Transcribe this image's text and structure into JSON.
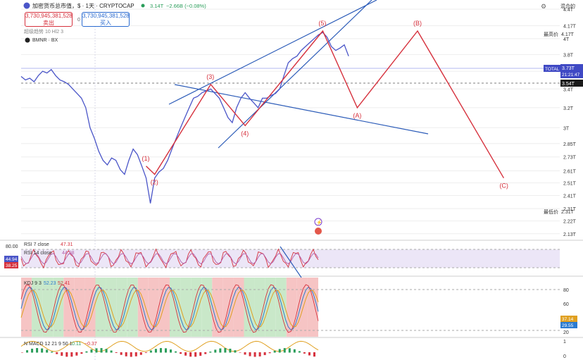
{
  "header": {
    "title": "加密货币总市值，$ · 1天 · CRYPTOCAP",
    "price": "3.14T",
    "change": "−2.66B (−0.08%)",
    "sell_value": "3,730,945,381,528",
    "sell_label": "卖出",
    "buy_value": "3,730,945,381,528",
    "buy_label": "买入",
    "spread": "0",
    "watermark": "超级趋势 10 Hl2 3",
    "compare": "BMNR · BX",
    "currency_menu": "混合的"
  },
  "price_axis": {
    "ticks": [
      "4.4T",
      "4.17T",
      "4T",
      "3.8T",
      "3.6T",
      "3.4T",
      "3.2T",
      "3T",
      "2.85T",
      "2.73T",
      "2.61T",
      "2.51T",
      "2.41T",
      "2.31T",
      "2.22T",
      "2.13T"
    ],
    "high_label": "最高价",
    "low_label": "最低价",
    "total_tag": "TOTAL",
    "total_value": "3.73T",
    "countdown": "21:21:47",
    "level_value": "3.54T"
  },
  "wave_labels": [
    "(1)",
    "(2)",
    "(3)",
    "(4)",
    "(5)",
    "(A)",
    "(B)",
    "(C)"
  ],
  "rsi": {
    "rsi7_label": "RSI 7 close",
    "rsi7_value": "47.31",
    "rsi14_label": "RSI 14 close",
    "rsi14_value": "44.98",
    "axis_top": "80.00",
    "tag1": "44.94",
    "tag2": "38.25"
  },
  "kdj": {
    "label": "KDJ 9 3",
    "v1": "52.23",
    "v2": "52.41",
    "axis": [
      "80",
      "60",
      "40",
      "20"
    ],
    "tag1": "37.14",
    "tag2": "29.55"
  },
  "macd": {
    "label": "N MACD 12 21 9 50 1",
    "v1": "0.11",
    "v2": "−0.37",
    "axis": [
      "1",
      "0"
    ]
  },
  "colors": {
    "price_line": "#4a55c8",
    "wave": "#d6313d",
    "trend": "#2b5bb8",
    "rsi_band": "#ece6f7",
    "kdj_green": "#c9e8c9",
    "kdj_red": "#f6c4c4"
  },
  "chart_data": {
    "type": "line",
    "series": [
      {
        "values": [
          3.54,
          3.5,
          3.52,
          3.48,
          3.55,
          3.6,
          3.58,
          3.62,
          3.55,
          3.5,
          3.48,
          3.45,
          3.4,
          3.35,
          3.3,
          3.2,
          3.0,
          2.9,
          2.78,
          2.7,
          2.66,
          2.72,
          2.7,
          2.62,
          2.58,
          2.7,
          2.8,
          2.75,
          2.65,
          2.55,
          2.35,
          2.55,
          2.6,
          2.63,
          2.7,
          2.8,
          2.9,
          3.0,
          3.1,
          3.2,
          3.3,
          3.32,
          3.36,
          3.38,
          3.4,
          3.35,
          3.3,
          3.2,
          3.1,
          3.05,
          3.2,
          3.3,
          3.36,
          3.3,
          3.25,
          3.2,
          3.3,
          3.3,
          3.33,
          3.35,
          3.4,
          3.55,
          3.7,
          3.75,
          3.78,
          3.85,
          3.9,
          3.95,
          4.0,
          4.05,
          4.08,
          4.02,
          3.9,
          3.85,
          3.88,
          3.92,
          3.78
        ]
      }
    ],
    "waves": [
      {
        "label": "(1)",
        "x": 29,
        "y": 2.65
      },
      {
        "label": "(2)",
        "x": 31,
        "y": 2.58
      },
      {
        "label": "(3)",
        "x": 44,
        "y": 3.45
      },
      {
        "label": "(4)",
        "x": 52,
        "y": 3.02
      },
      {
        "label": "(5)",
        "x": 70,
        "y": 4.1
      },
      {
        "label": "(A)",
        "x": 78,
        "y": 3.2
      },
      {
        "label": "(B)",
        "x": 92,
        "y": 4.1
      },
      {
        "label": "(C)",
        "x": 112,
        "y": 2.55
      }
    ],
    "yscale": "log",
    "ylim": [
      2.1,
      4.45
    ],
    "xlim": [
      0,
      125
    ]
  }
}
